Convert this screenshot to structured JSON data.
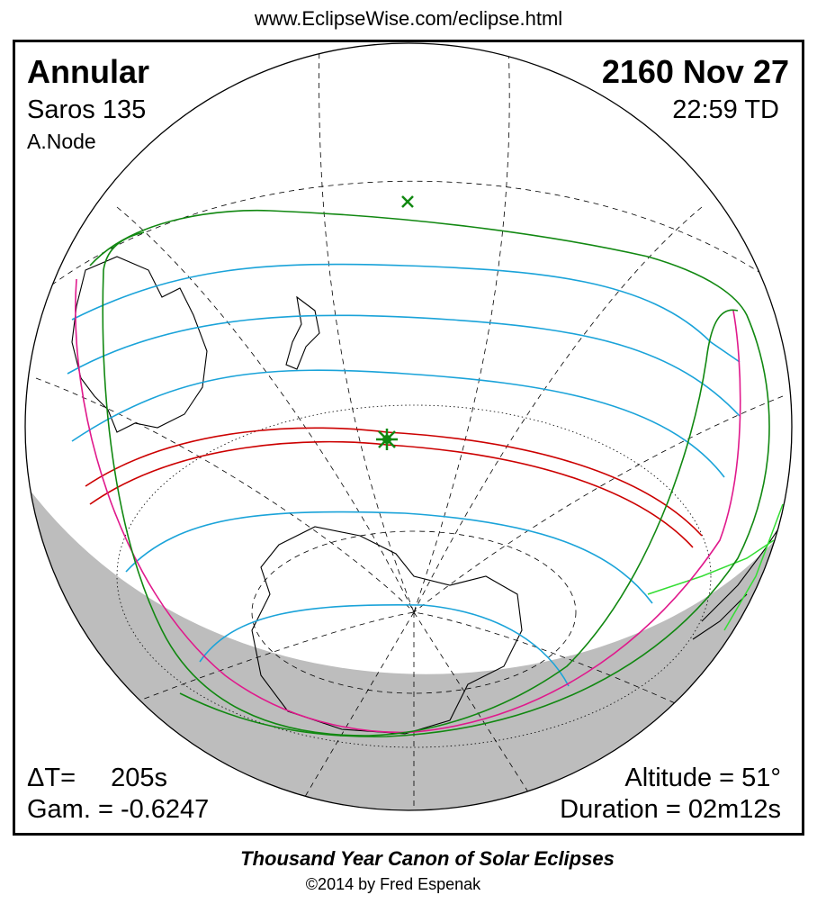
{
  "header": {
    "url": "www.EclipseWise.com/eclipse.html"
  },
  "eclipse": {
    "type": "Annular",
    "saros": "Saros 135",
    "node": "A.Node",
    "date": "2160 Nov 27",
    "time": "22:59 TD",
    "delta_t_label": "ΔT=",
    "delta_t_value": "205s",
    "gamma": "Gam. = -0.6247",
    "altitude": "Altitude = 51°",
    "duration": "Duration = 02m12s"
  },
  "footer": {
    "title": "Thousand Year Canon of Solar Eclipses",
    "copyright": "©2014 by Fred Espenak"
  }
}
